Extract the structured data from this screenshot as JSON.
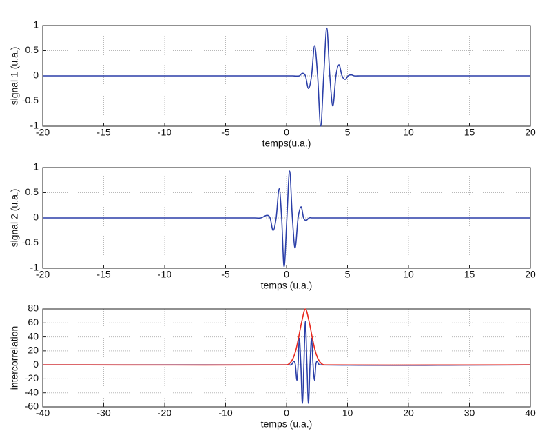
{
  "chart_data": [
    {
      "type": "line",
      "xlabel": "temps(u.a.)",
      "ylabel": "signal 1 (u.a.)",
      "xlim": [
        -20,
        20
      ],
      "ylim": [
        -1,
        1
      ],
      "xticks": [
        -20,
        -15,
        -10,
        -5,
        0,
        5,
        10,
        15,
        20
      ],
      "yticks": [
        -1,
        -0.5,
        0,
        0.5,
        1
      ],
      "grid": true,
      "series": [
        {
          "color": "#2b3fa8",
          "x": [
            -20,
            0.5,
            1.05,
            1.3,
            1.55,
            1.8,
            2.05,
            2.3,
            2.55,
            2.8,
            3.05,
            3.3,
            3.55,
            3.8,
            4.05,
            4.3,
            4.55,
            4.8,
            5.05,
            5.3,
            5.55,
            6,
            20
          ],
          "values": [
            0,
            0,
            0,
            0.05,
            0,
            -0.25,
            0,
            0.6,
            0,
            -1,
            0,
            0.95,
            0,
            -0.6,
            0,
            0.22,
            0,
            -0.07,
            0,
            0.02,
            0,
            0,
            0
          ]
        }
      ]
    },
    {
      "type": "line",
      "xlabel": "temps (u.a.)",
      "ylabel": "signal 2 (u.a.)",
      "xlim": [
        -20,
        20
      ],
      "ylim": [
        -1,
        1
      ],
      "xticks": [
        -20,
        -15,
        -10,
        -5,
        0,
        5,
        10,
        15,
        20
      ],
      "yticks": [
        -1,
        -0.5,
        0,
        0.5,
        1
      ],
      "grid": true,
      "series": [
        {
          "color": "#2b3fa8",
          "x": [
            -20,
            -2.6,
            -2.1,
            -1.6,
            -1.35,
            -1.1,
            -0.85,
            -0.6,
            -0.4,
            -0.2,
            0.03,
            0.25,
            0.48,
            0.7,
            0.95,
            1.2,
            1.4,
            1.6,
            1.85,
            2.1,
            2.5,
            20
          ],
          "values": [
            0,
            0,
            0,
            0.05,
            0,
            -0.25,
            0,
            0.58,
            0,
            -0.97,
            0,
            0.93,
            0,
            -0.6,
            0,
            0.22,
            0,
            -0.05,
            0,
            0,
            0,
            0
          ]
        }
      ]
    },
    {
      "type": "line",
      "xlabel": "temps (u.a.)",
      "ylabel": "intercorrelation",
      "xlim": [
        -40,
        40
      ],
      "ylim": [
        -60,
        80
      ],
      "xticks": [
        -40,
        -30,
        -20,
        -10,
        0,
        10,
        20,
        30,
        40
      ],
      "yticks": [
        -60,
        -40,
        -20,
        0,
        20,
        40,
        60,
        80
      ],
      "grid": true,
      "series": [
        {
          "color": "#2b3fa8",
          "x": [
            -40,
            0.5,
            0.8,
            1.2,
            1.45,
            1.7,
            1.9,
            2.1,
            2.35,
            2.6,
            2.85,
            3.1,
            3.35,
            3.6,
            3.85,
            4.1,
            4.35,
            4.6,
            4.8,
            5.0,
            5.4,
            40
          ],
          "values": [
            0,
            0,
            0,
            5,
            0,
            -22,
            0,
            38,
            0,
            -55,
            0,
            62,
            0,
            -55,
            0,
            38,
            0,
            -22,
            0,
            5,
            0,
            0
          ]
        },
        {
          "color": "#e8281e",
          "x": [
            -40,
            0,
            0.5,
            1,
            1.5,
            2,
            2.5,
            3.1,
            3.7,
            4.2,
            4.7,
            5.2,
            5.7,
            6.2,
            40
          ],
          "values": [
            0,
            0,
            2,
            8,
            20,
            40,
            62,
            80,
            62,
            40,
            20,
            8,
            2,
            0,
            0
          ]
        }
      ]
    }
  ]
}
